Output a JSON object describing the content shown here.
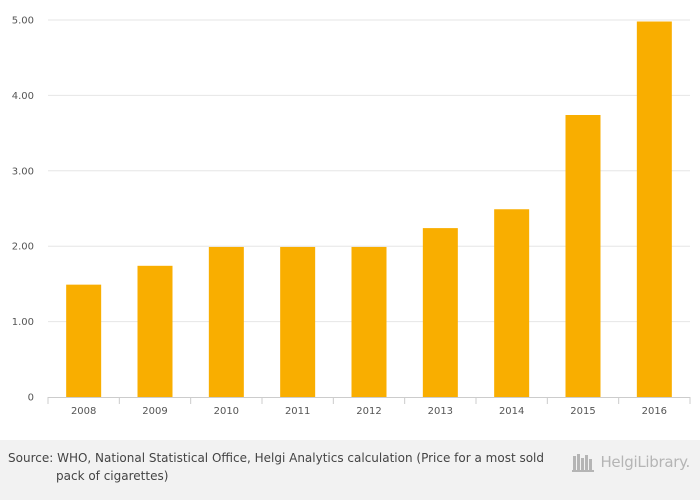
{
  "chart_data": {
    "type": "bar",
    "categories": [
      "2008",
      "2009",
      "2010",
      "2011",
      "2012",
      "2013",
      "2014",
      "2015",
      "2016"
    ],
    "values": [
      1.49,
      1.74,
      1.99,
      1.99,
      1.99,
      2.24,
      2.49,
      3.74,
      4.98
    ],
    "yticks": [
      "0",
      "1.00",
      "2.00",
      "3.00",
      "4.00",
      "5.00"
    ],
    "ylim": [
      0,
      5
    ],
    "grid": true,
    "bar_color": "#f9ae00",
    "grid_color": "#e6e6e6"
  },
  "footer": {
    "source": "Source: WHO, National Statistical Office, Helgi Analytics calculation (Price for a most sold pack of cigarettes)",
    "logo_text": "HelgiLibrary.",
    "logo_icon": "bookshelf-icon"
  }
}
